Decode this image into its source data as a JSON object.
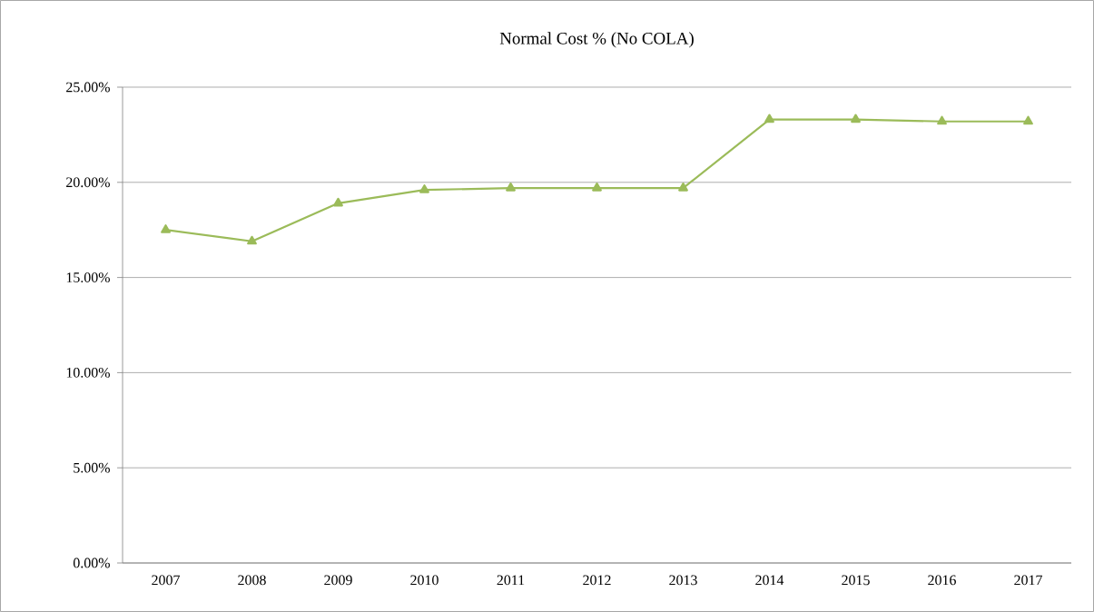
{
  "chart_data": {
    "type": "line",
    "title": "Normal Cost % (No COLA)",
    "categories": [
      "2007",
      "2008",
      "2009",
      "2010",
      "2011",
      "2012",
      "2013",
      "2014",
      "2015",
      "2016",
      "2017"
    ],
    "series": [
      {
        "color": "#9bbb59",
        "values": [
          17.5,
          16.9,
          18.9,
          19.6,
          19.7,
          19.7,
          19.7,
          23.3,
          23.3,
          23.2,
          23.2
        ]
      }
    ],
    "ylim": [
      0,
      25
    ],
    "yticks": [
      {
        "value": 0,
        "label": "0.00%"
      },
      {
        "value": 5,
        "label": "5.00%"
      },
      {
        "value": 10,
        "label": "10.00%"
      },
      {
        "value": 15,
        "label": "15.00%"
      },
      {
        "value": 20,
        "label": "20.00%"
      },
      {
        "value": 25,
        "label": "25.00%"
      }
    ],
    "grid": "y",
    "marker": "triangle",
    "line_style": "solid"
  }
}
